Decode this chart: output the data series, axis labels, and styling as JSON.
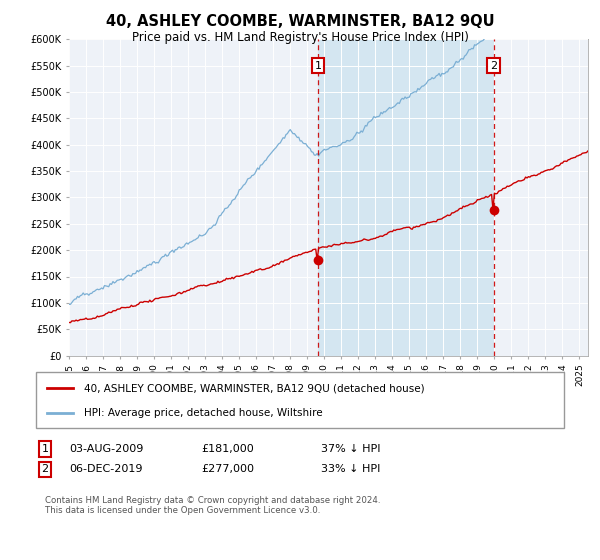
{
  "title": "40, ASHLEY COOMBE, WARMINSTER, BA12 9QU",
  "subtitle": "Price paid vs. HM Land Registry's House Price Index (HPI)",
  "legend_line1": "40, ASHLEY COOMBE, WARMINSTER, BA12 9QU (detached house)",
  "legend_line2": "HPI: Average price, detached house, Wiltshire",
  "annotation1_date": "03-AUG-2009",
  "annotation1_price": "£181,000",
  "annotation1_hpi": "37% ↓ HPI",
  "annotation2_date": "06-DEC-2019",
  "annotation2_price": "£277,000",
  "annotation2_hpi": "33% ↓ HPI",
  "footer": "Contains HM Land Registry data © Crown copyright and database right 2024.\nThis data is licensed under the Open Government Licence v3.0.",
  "hpi_color": "#7bafd4",
  "price_color": "#cc0000",
  "annotation_color": "#cc0000",
  "shade_color": "#d0e4f0",
  "bg_color": "#eef2f8",
  "ylim": [
    0,
    600000
  ],
  "yticks": [
    0,
    50000,
    100000,
    150000,
    200000,
    250000,
    300000,
    350000,
    400000,
    450000,
    500000,
    550000,
    600000
  ]
}
